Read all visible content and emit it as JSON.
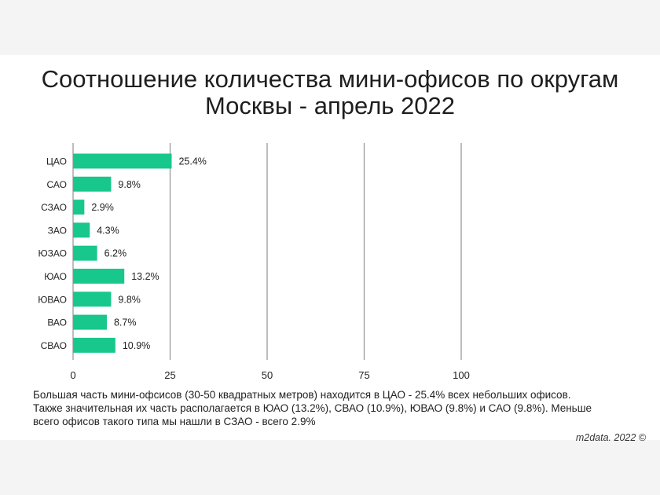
{
  "chart_data": {
    "type": "bar",
    "orientation": "horizontal",
    "title_lines": [
      "Соотношение количества мини-офисов по округам",
      "Москвы - апрель 2022"
    ],
    "categories": [
      "ЦАО",
      "САО",
      "СЗАО",
      "ЗАО",
      "ЮЗАО",
      "ЮАО",
      "ЮВАО",
      "ВАО",
      "СВАО"
    ],
    "values": [
      25.4,
      9.8,
      2.9,
      4.3,
      6.2,
      13.2,
      9.8,
      8.7,
      10.9
    ],
    "value_labels": [
      "25.4%",
      "9.8%",
      "2.9%",
      "4.3%",
      "6.2%",
      "13.2%",
      "9.8%",
      "8.7%",
      "10.9%"
    ],
    "xlim": [
      0,
      100
    ],
    "xticks": [
      0,
      25,
      50,
      75,
      100
    ],
    "grid": "vertical",
    "bar_color": "#17c78c",
    "grid_color": "#9a9a9a"
  },
  "caption": "Большая часть мини-офсисов (30-50 квадратных метров) находится в ЦАО - 25.4% всех небольших офисов. Также значительная их часть располагается в ЮАО (13.2%), СВАО (10.9%), ЮВАО (9.8%) и САО (9.8%). Меньше всего офисов такого типа мы нашли в СЗАО - всего 2.9%",
  "credit": "m2data. 2022 ©"
}
